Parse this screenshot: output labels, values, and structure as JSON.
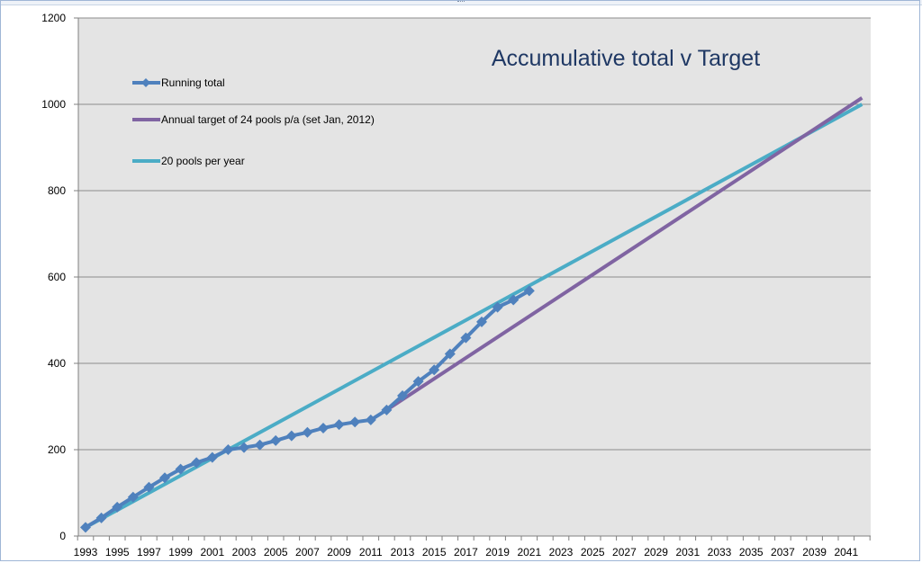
{
  "chart_data": {
    "type": "line",
    "title": "Accumulative total v Target",
    "xlabel": "",
    "ylabel": "",
    "xlim": [
      1993,
      2042
    ],
    "ylim": [
      0,
      1200
    ],
    "yticks": [
      0,
      200,
      400,
      600,
      800,
      1000,
      1200
    ],
    "xticks": [
      1993,
      1995,
      1997,
      1999,
      2001,
      2003,
      2005,
      2007,
      2009,
      2011,
      2013,
      2015,
      2017,
      2019,
      2021,
      2023,
      2025,
      2027,
      2029,
      2031,
      2033,
      2035,
      2037,
      2039,
      2041
    ],
    "grid": "horizontal",
    "legend_position": "top-left",
    "series": [
      {
        "name": "Running total",
        "color": "#4f81bd",
        "marker": "diamond",
        "x": [
          1993,
          1994,
          1995,
          1996,
          1997,
          1998,
          1999,
          2000,
          2001,
          2002,
          2003,
          2004,
          2005,
          2006,
          2007,
          2008,
          2009,
          2010,
          2011,
          2012,
          2013,
          2014,
          2015,
          2016,
          2017,
          2018,
          2019,
          2020,
          2021
        ],
        "y": [
          20,
          42,
          67,
          90,
          113,
          135,
          155,
          170,
          182,
          200,
          205,
          211,
          221,
          232,
          240,
          250,
          258,
          264,
          269,
          292,
          325,
          358,
          385,
          422,
          459,
          496,
          530,
          547,
          568
        ]
      },
      {
        "name": "Annual target of 24 pools p/a (set Jan, 2012)",
        "color": "#8064a2",
        "marker": "none",
        "x": [
          2012,
          2042
        ],
        "y": [
          292,
          1015
        ]
      },
      {
        "name": "20 pools per year",
        "color": "#4bacc6",
        "marker": "none",
        "x": [
          1993,
          2042
        ],
        "y": [
          20,
          1000
        ]
      }
    ]
  }
}
